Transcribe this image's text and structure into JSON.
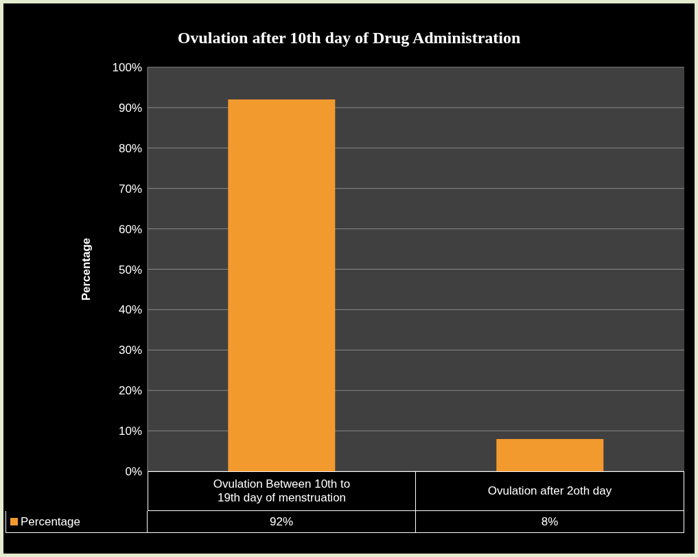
{
  "chart_data": {
    "type": "bar",
    "title": "Ovulation after 10th day of Drug Administration",
    "ylabel": "Percentage",
    "categories": [
      "Ovulation Between 10th to 19th day of menstruation",
      "Ovulation after 2oth day"
    ],
    "series": [
      {
        "name": "Percentage",
        "color": "#f39a2e",
        "values": [
          92,
          8
        ],
        "value_labels": [
          "92%",
          "8%"
        ]
      }
    ],
    "ylim": [
      0,
      100
    ],
    "yticks": [
      {
        "value": 0,
        "label": "0%"
      },
      {
        "value": 10,
        "label": "10%"
      },
      {
        "value": 20,
        "label": "20%"
      },
      {
        "value": 30,
        "label": "30%"
      },
      {
        "value": 40,
        "label": "40%"
      },
      {
        "value": 50,
        "label": "50%"
      },
      {
        "value": 60,
        "label": "60%"
      },
      {
        "value": 70,
        "label": "70%"
      },
      {
        "value": 80,
        "label": "80%"
      },
      {
        "value": 90,
        "label": "90%"
      },
      {
        "value": 100,
        "label": "100%"
      }
    ],
    "grid": "y",
    "legend": "bottom left"
  }
}
